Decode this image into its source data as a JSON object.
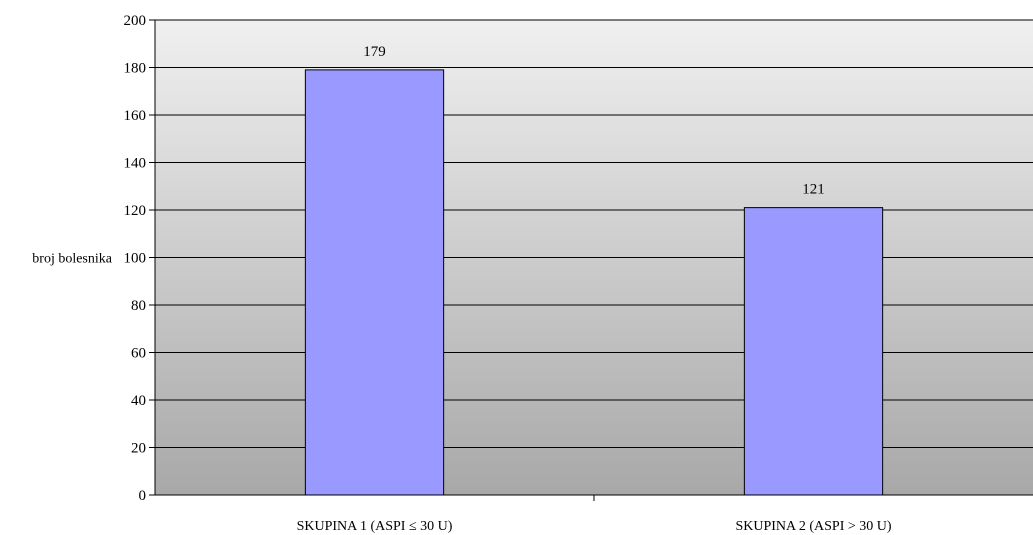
{
  "chart_data": {
    "type": "bar",
    "title": "",
    "xlabel": "",
    "ylabel": "broj bolesnika",
    "categories": [
      "SKUPINA 1 (ASPI ≤ 30 U)",
      "SKUPINA 2 (ASPI > 30 U)"
    ],
    "values": [
      179,
      121
    ],
    "data_labels": [
      "179",
      "121"
    ],
    "ylim": [
      0,
      200
    ],
    "yticks": [
      0,
      20,
      40,
      60,
      80,
      100,
      120,
      140,
      160,
      180,
      200
    ],
    "grid": true,
    "legend": "none",
    "bar_color": "#9999ff",
    "background_gradient": [
      "#f0f0f0",
      "#a8a8a8"
    ]
  }
}
